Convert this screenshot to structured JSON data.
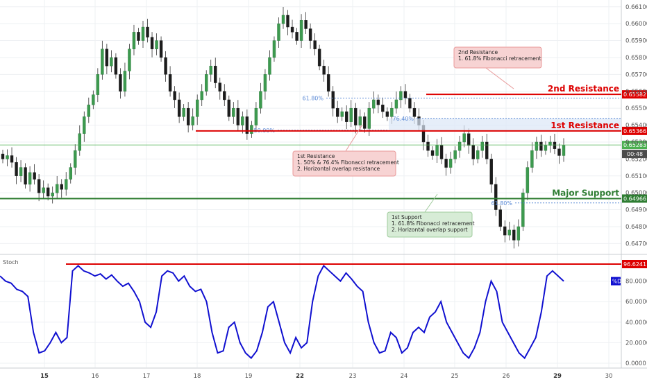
{
  "chart_data": [
    {
      "type": "candlestick",
      "title": "",
      "x_ticks": [
        "15",
        "16",
        "17",
        "18",
        "19",
        "22",
        "23",
        "24",
        "25",
        "26",
        "29",
        "30"
      ],
      "x_ticks_bold": [
        "15",
        "22",
        "29"
      ],
      "y_ticks": [
        "0.66100",
        "0.66000",
        "0.65900",
        "0.65800",
        "0.65700",
        "0.65600",
        "0.65500",
        "0.65400",
        "0.65300",
        "0.65200",
        "0.65100",
        "0.65000",
        "0.64900",
        "0.64800",
        "0.64700"
      ],
      "ylim": [
        0.6464,
        0.6614
      ],
      "grid": true,
      "candles_close": [
        0.652,
        0.6522,
        0.6518,
        0.651,
        0.6515,
        0.6505,
        0.6512,
        0.6508,
        0.65,
        0.6503,
        0.6498,
        0.65,
        0.6505,
        0.6502,
        0.6508,
        0.6515,
        0.6525,
        0.6535,
        0.6545,
        0.6552,
        0.6558,
        0.657,
        0.6585,
        0.6575,
        0.658,
        0.657,
        0.656,
        0.6572,
        0.6585,
        0.6595,
        0.659,
        0.6598,
        0.6592,
        0.6585,
        0.659,
        0.658,
        0.657,
        0.656,
        0.6555,
        0.6545,
        0.655,
        0.654,
        0.6545,
        0.6555,
        0.656,
        0.657,
        0.6575,
        0.6565,
        0.656,
        0.6555,
        0.6545,
        0.655,
        0.654,
        0.6545,
        0.6535,
        0.654,
        0.655,
        0.656,
        0.657,
        0.658,
        0.659,
        0.66,
        0.6605,
        0.6598,
        0.6595,
        0.659,
        0.6602,
        0.6597,
        0.659,
        0.6585,
        0.6575,
        0.657,
        0.656,
        0.655,
        0.6545,
        0.6548,
        0.6542,
        0.655,
        0.654,
        0.6545,
        0.6538,
        0.655,
        0.6555,
        0.6552,
        0.6548,
        0.6545,
        0.655,
        0.6555,
        0.656,
        0.6556,
        0.655,
        0.6545,
        0.654,
        0.653,
        0.6525,
        0.6522,
        0.6528,
        0.652,
        0.6515,
        0.652,
        0.6525,
        0.653,
        0.6535,
        0.6528,
        0.652,
        0.6525,
        0.653,
        0.652,
        0.6505,
        0.649,
        0.648,
        0.6475,
        0.6478,
        0.6472,
        0.648,
        0.65,
        0.6515,
        0.6525,
        0.653,
        0.6525,
        0.6528,
        0.653,
        0.6526,
        0.6522,
        0.6528
      ],
      "annotations": [
        {
          "label": "2nd Resistance",
          "value": 0.65582,
          "price_label": "0.65582",
          "color": "#dd0000"
        },
        {
          "label": "1st Resistance",
          "value": 0.65366,
          "price_label": "0.65366",
          "color": "#dd0000"
        },
        {
          "label": "Major Support",
          "value": 0.64966,
          "price_label": "0.64966",
          "color": "#2e7d32"
        },
        {
          "label": "current",
          "value": 0.65283,
          "price_label": "0.65283",
          "color": "#4caf50"
        }
      ],
      "timer": "00:48",
      "fib_labels": [
        {
          "label": "61.80%",
          "value": 0.6556
        },
        {
          "label": "50.00%",
          "value": 0.6537
        },
        {
          "label": "76.40%",
          "value": 0.6544
        },
        {
          "label": "61.80%",
          "value": 0.6494
        }
      ],
      "callouts": [
        {
          "lines": [
            "2nd Resistance",
            "1. 61.8% Fibonacci retracement"
          ]
        },
        {
          "lines": [
            "1st Resistance",
            "1. 50% & 76.4% Fibonacci retracement",
            "2. Horizontal overlap resistance"
          ]
        },
        {
          "lines": [
            "1st Support",
            "1. 61.8% Fibonacci retracement",
            "2. Horizontal overlap support"
          ]
        }
      ]
    },
    {
      "type": "line",
      "title": "Stoch",
      "legend": "%D",
      "series": [
        {
          "name": "%D",
          "values": [
            85,
            80,
            78,
            72,
            70,
            65,
            30,
            10,
            12,
            20,
            30,
            20,
            25,
            90,
            95,
            90,
            88,
            85,
            87,
            82,
            86,
            80,
            75,
            78,
            70,
            60,
            40,
            35,
            50,
            85,
            90,
            88,
            80,
            85,
            75,
            70,
            72,
            60,
            30,
            10,
            12,
            35,
            40,
            20,
            10,
            5,
            12,
            30,
            55,
            60,
            40,
            20,
            10,
            25,
            15,
            20,
            60,
            85,
            95,
            90,
            85,
            80,
            88,
            82,
            75,
            70,
            40,
            20,
            10,
            12,
            30,
            25,
            10,
            15,
            30,
            35,
            30,
            45,
            50,
            60,
            40,
            30,
            20,
            10,
            5,
            15,
            30,
            60,
            80,
            70,
            40,
            30,
            20,
            10,
            5,
            15,
            25,
            50,
            85,
            90,
            85,
            80
          ]
        }
      ],
      "y_ticks": [
        "80.0000",
        "60.0000",
        "40.0000",
        "20.0000",
        "0.0000"
      ],
      "ylim": [
        0,
        100
      ],
      "level": {
        "value": 96.6241,
        "price_label": "96.6241",
        "color": "#dd0000"
      },
      "line_color": "#1010d0"
    }
  ]
}
